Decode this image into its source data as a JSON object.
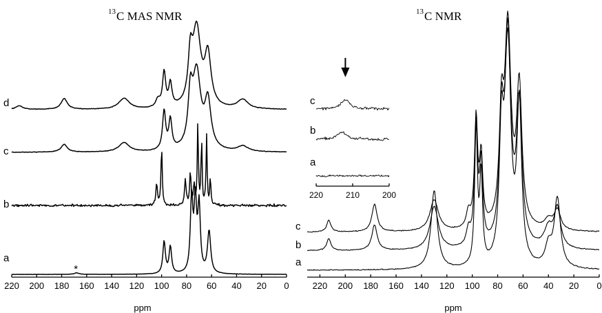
{
  "chart_data": [
    {
      "type": "line",
      "title_sup": "13",
      "title_main": "C MAS NMR",
      "xlabel": "ppm",
      "x_reversed": true,
      "xlim": [
        220,
        0
      ],
      "xticks": [
        "220",
        "200",
        "180",
        "160",
        "140",
        "120",
        "100",
        "80",
        "60",
        "40",
        "20",
        "0"
      ],
      "annotation": "*",
      "annotation_ppm": 168,
      "series": [
        {
          "name": "d",
          "peaks": [
            [
              214,
              0.05,
              3
            ],
            [
              178,
              0.14,
              3
            ],
            [
              130,
              0.14,
              5
            ],
            [
              103,
              0.1,
              2
            ],
            [
              98,
              0.45,
              1.5
            ],
            [
              93,
              0.3,
              1.5
            ],
            [
              77,
              0.55,
              2
            ],
            [
              72,
              1.0,
              4
            ],
            [
              63,
              0.65,
              3
            ],
            [
              35,
              0.12,
              5
            ]
          ]
        },
        {
          "name": "c",
          "peaks": [
            [
              178,
              0.1,
              3
            ],
            [
              130,
              0.12,
              5
            ],
            [
              98,
              0.5,
              1.5
            ],
            [
              93,
              0.38,
              1.5
            ],
            [
              77,
              0.6,
              2
            ],
            [
              72,
              1.0,
              4
            ],
            [
              63,
              0.6,
              3
            ],
            [
              35,
              0.07,
              5
            ]
          ]
        },
        {
          "name": "b",
          "peaks": [
            [
              104,
              0.25,
              0.8
            ],
            [
              100,
              0.7,
              0.6
            ],
            [
              81,
              0.3,
              0.8
            ],
            [
              77,
              0.4,
              0.6
            ],
            [
              74,
              0.25,
              0.6
            ],
            [
              71,
              1.0,
              0.5
            ],
            [
              68,
              0.8,
              0.5
            ],
            [
              64,
              0.85,
              0.5
            ],
            [
              61,
              0.35,
              0.5
            ]
          ]
        },
        {
          "name": "a",
          "peaks": [
            [
              168,
              0.02,
              2
            ],
            [
              98,
              0.42,
              1.2
            ],
            [
              93,
              0.35,
              1.2
            ],
            [
              76,
              0.95,
              1.2
            ],
            [
              73,
              0.9,
              1.2
            ],
            [
              70,
              0.85,
              1.2
            ],
            [
              62,
              0.55,
              1.5
            ]
          ]
        }
      ]
    },
    {
      "type": "line",
      "title_sup": "13",
      "title_main": "C NMR",
      "xlabel": "ppm",
      "x_reversed": true,
      "xlim": [
        230,
        0
      ],
      "xticks": [
        "220",
        "200",
        "180",
        "160",
        "140",
        "120",
        "100",
        "80",
        "60",
        "40",
        "20",
        "0"
      ],
      "series": [
        {
          "name": "c",
          "peaks": [
            [
              213,
              0.06,
              2
            ],
            [
              177,
              0.14,
              2.5
            ],
            [
              130,
              0.16,
              4
            ],
            [
              103,
              0.08,
              2
            ],
            [
              97,
              0.55,
              1.5
            ],
            [
              93,
              0.35,
              1.5
            ],
            [
              77,
              0.5,
              2
            ],
            [
              72,
              1.0,
              3
            ],
            [
              63,
              0.7,
              2.5
            ],
            [
              40,
              0.05,
              4
            ],
            [
              33,
              0.1,
              3
            ]
          ]
        },
        {
          "name": "b",
          "peaks": [
            [
              213,
              0.06,
              2
            ],
            [
              177,
              0.13,
              2.5
            ],
            [
              130,
              0.22,
              4
            ],
            [
              103,
              0.08,
              2
            ],
            [
              97,
              0.6,
              1.5
            ],
            [
              93,
              0.4,
              1.5
            ],
            [
              77,
              0.55,
              2
            ],
            [
              72,
              1.0,
              3
            ],
            [
              63,
              0.7,
              2.5
            ],
            [
              40,
              0.1,
              4
            ],
            [
              33,
              0.2,
              3
            ]
          ]
        },
        {
          "name": "a",
          "peaks": [
            [
              130,
              0.4,
              3
            ],
            [
              97,
              0.7,
              1.3
            ],
            [
              93,
              0.45,
              1.3
            ],
            [
              77,
              0.6,
              2
            ],
            [
              72,
              1.15,
              2.8
            ],
            [
              63,
              0.8,
              2.2
            ],
            [
              40,
              0.1,
              3
            ],
            [
              33,
              0.35,
              3
            ]
          ]
        }
      ],
      "inset": {
        "xlim": [
          220,
          200
        ],
        "xticks": [
          "220",
          "210",
          "200"
        ],
        "arrow_ppm": 212,
        "series": [
          {
            "name": "c",
            "peaks": [
              [
                212,
                0.5,
                1.5
              ]
            ]
          },
          {
            "name": "b",
            "peaks": [
              [
                213,
                0.4,
                1.5
              ]
            ]
          },
          {
            "name": "a",
            "peaks": []
          }
        ]
      }
    }
  ]
}
